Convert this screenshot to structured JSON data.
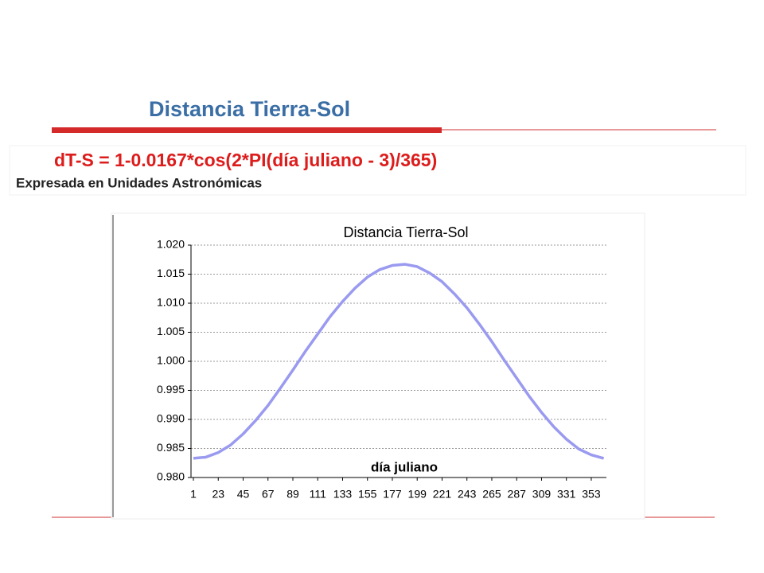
{
  "slide": {
    "title": "Distancia Tierra-Sol",
    "formula": "dT-S = 1-0.0167*cos(2*PI(día juliano - 3)/365)",
    "subtitle": "Expresada en Unidades Astronómicas"
  },
  "chart_data": {
    "type": "line",
    "title": "Distancia Tierra-Sol",
    "x_label": "día juliano",
    "x": [
      1,
      12,
      23,
      34,
      45,
      56,
      67,
      78,
      89,
      100,
      111,
      122,
      133,
      144,
      155,
      166,
      177,
      188,
      199,
      210,
      221,
      232,
      243,
      254,
      265,
      276,
      287,
      298,
      309,
      320,
      331,
      342,
      353,
      364
    ],
    "values": [
      0.9833,
      0.9835,
      0.9843,
      0.9856,
      0.9875,
      0.9898,
      0.9924,
      0.9954,
      0.9985,
      1.0017,
      1.0047,
      1.0077,
      1.0103,
      1.0126,
      1.0145,
      1.0158,
      1.0165,
      1.0167,
      1.0163,
      1.0152,
      1.0137,
      1.0116,
      1.0092,
      1.0064,
      1.0034,
      1.0002,
      0.9971,
      0.994,
      0.9912,
      0.9887,
      0.9866,
      0.9849,
      0.9839,
      0.9833
    ],
    "color": "#9a9af0",
    "xlim": [
      1,
      365
    ],
    "xticks": [
      1,
      23,
      45,
      67,
      89,
      111,
      133,
      155,
      177,
      199,
      221,
      243,
      265,
      287,
      309,
      331,
      353
    ],
    "ylim": [
      0.98,
      1.02
    ],
    "yticks": [
      {
        "value": 0.98,
        "label": "0.980"
      },
      {
        "value": 0.985,
        "label": "0.985"
      },
      {
        "value": 0.99,
        "label": "0.990"
      },
      {
        "value": 0.995,
        "label": "0.995"
      },
      {
        "value": 1.0,
        "label": "1.000"
      },
      {
        "value": 1.005,
        "label": "1.005"
      },
      {
        "value": 1.01,
        "label": "1.010"
      },
      {
        "value": 1.015,
        "label": "1.015"
      },
      {
        "value": 1.02,
        "label": "1.020"
      }
    ],
    "grid": true
  }
}
